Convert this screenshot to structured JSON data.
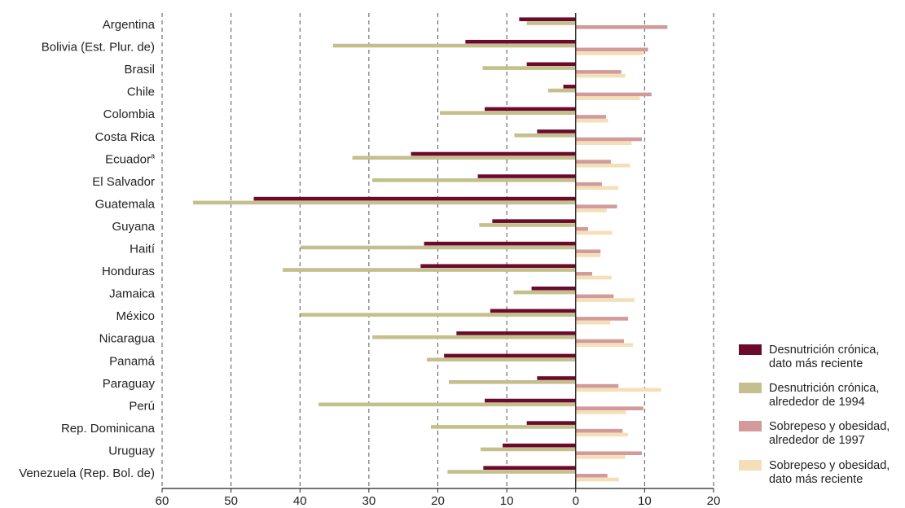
{
  "chart_data": {
    "type": "bar",
    "orientation": "horizontal",
    "categories": [
      "Argentina",
      "Bolivia (Est. Plur. de)",
      "Brasil",
      "Chile",
      "Colombia",
      "Costa Rica",
      "Ecuador",
      "El Salvador",
      "Guatemala",
      "Guyana",
      "Haití",
      "Honduras",
      "Jamaica",
      "México",
      "Nicaragua",
      "Panamá",
      "Paraguay",
      "Perú",
      "Rep. Dominicana",
      "Uruguay",
      "Venezuela (Rep. Bol. de)"
    ],
    "category_superscripts": {
      "Ecuador": "a"
    },
    "series": [
      {
        "name": "Desnutrición crónica, dato más reciente",
        "color": "#6b0a2a",
        "values": [
          -8.2,
          -16,
          -7.1,
          -1.8,
          -13.2,
          -5.6,
          -23.9,
          -14.2,
          -46.7,
          -12.1,
          -22,
          -22.5,
          -6.4,
          -12.4,
          -17.3,
          -19.1,
          -5.6,
          -13.2,
          -7.1,
          -10.6,
          -13.4
        ]
      },
      {
        "name": "Desnutrición crónica, alrededor de 1994",
        "color": "#c4bf8c",
        "values": [
          -7.1,
          -35.2,
          -13.5,
          -4,
          -19.7,
          -8.9,
          -32.4,
          -29.5,
          -55.5,
          -14,
          -39.9,
          -42.5,
          -9,
          -39.9,
          -29.5,
          -21.6,
          -18.4,
          -37.3,
          -21,
          -13.8,
          -18.6
        ]
      },
      {
        "name": "Sobrepeso y obesidad, alrededor de 1997",
        "color": "#d29a9a",
        "values": [
          13.3,
          10.5,
          6.6,
          11,
          4.4,
          9.6,
          5.1,
          3.8,
          6,
          1.8,
          3.6,
          2.4,
          5.5,
          7.6,
          7,
          0,
          6.2,
          9.8,
          6.8,
          9.6,
          4.6
        ]
      },
      {
        "name": "Sobrepeso y obesidad, dato más reciente",
        "color": "#f5dfb8",
        "values": [
          0,
          9.9,
          7.2,
          9.3,
          4.7,
          8.1,
          7.9,
          6.2,
          4.5,
          5.3,
          3.6,
          5.2,
          8.5,
          5,
          8.3,
          0,
          12.4,
          7.3,
          7.6,
          7.2,
          6.3
        ]
      }
    ],
    "xlim": [
      -60,
      20
    ],
    "xticks": [
      -60,
      -50,
      -40,
      -30,
      -20,
      -10,
      0,
      10,
      20
    ],
    "xtick_labels": [
      "60",
      "50",
      "40",
      "30",
      "20",
      "10",
      "0",
      "10",
      "20"
    ],
    "grid": "vertical dashed",
    "legend_position": "bottom-right",
    "title": "",
    "xlabel": "",
    "ylabel": ""
  },
  "legend": [
    {
      "line1": "Desnutrición crónica,",
      "line2": "dato más reciente",
      "color": "#6b0a2a"
    },
    {
      "line1": "Desnutrición crónica,",
      "line2": "alrededor de 1994",
      "color": "#c4bf8c"
    },
    {
      "line1": "Sobrepeso y obesidad,",
      "line2": "alrededor de 1997",
      "color": "#d29a9a"
    },
    {
      "line1": "Sobrepeso y obesidad,",
      "line2": "dato más reciente",
      "color": "#f5dfb8"
    }
  ]
}
